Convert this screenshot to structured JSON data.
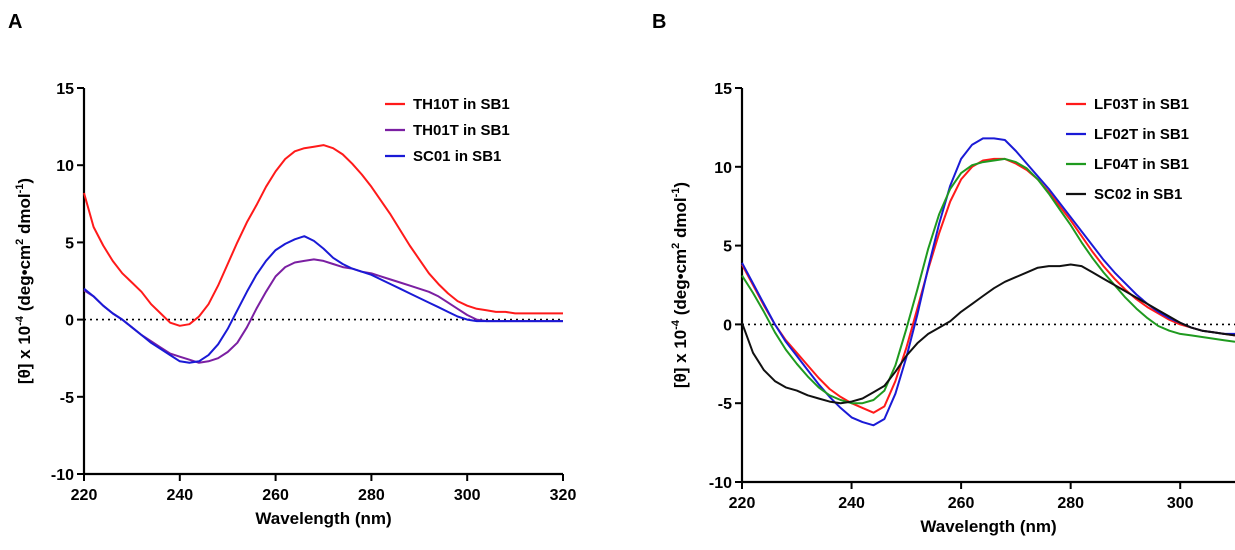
{
  "chart_data": [
    {
      "panel": "A",
      "type": "line",
      "xlabel": "Wavelength (nm)",
      "ylabel": "[θ] x 10",
      "ylabel_exp": "-4",
      "ylabel_units": " (deg•cm",
      "ylabel_units_exp": "2",
      "ylabel_units_mid": " dmol",
      "ylabel_units_exp2": "-1",
      "ylabel_units_end": ")",
      "xlim": [
        220,
        320
      ],
      "ylim": [
        -10,
        15
      ],
      "xticks": [
        220,
        240,
        260,
        280,
        300,
        320
      ],
      "yticks": [
        -10,
        -5,
        0,
        5,
        10,
        15
      ],
      "zero_line": "dotted",
      "legend_position": "top-right",
      "series": [
        {
          "name": "TH10T in SB1",
          "color": "#ff1a1a",
          "x": [
            220,
            222,
            224,
            226,
            228,
            230,
            232,
            234,
            236,
            238,
            240,
            242,
            244,
            246,
            248,
            250,
            252,
            254,
            256,
            258,
            260,
            262,
            264,
            266,
            268,
            270,
            272,
            274,
            276,
            278,
            280,
            282,
            284,
            286,
            288,
            290,
            292,
            294,
            296,
            298,
            300,
            302,
            304,
            306,
            308,
            310,
            312,
            314,
            316,
            318,
            320
          ],
          "y": [
            8.2,
            6.0,
            4.8,
            3.8,
            3.0,
            2.4,
            1.8,
            1.0,
            0.4,
            -0.2,
            -0.4,
            -0.3,
            0.2,
            1.0,
            2.2,
            3.6,
            5.0,
            6.3,
            7.4,
            8.6,
            9.6,
            10.4,
            10.9,
            11.1,
            11.2,
            11.3,
            11.1,
            10.7,
            10.1,
            9.4,
            8.6,
            7.7,
            6.8,
            5.8,
            4.8,
            3.9,
            3.0,
            2.3,
            1.7,
            1.2,
            0.9,
            0.7,
            0.6,
            0.5,
            0.5,
            0.4,
            0.4,
            0.4,
            0.4,
            0.4,
            0.4
          ]
        },
        {
          "name": "TH01T in SB1",
          "color": "#7b1fa2",
          "x": [
            220,
            222,
            224,
            226,
            228,
            230,
            232,
            234,
            236,
            238,
            240,
            242,
            244,
            246,
            248,
            250,
            252,
            254,
            256,
            258,
            260,
            262,
            264,
            266,
            268,
            270,
            272,
            274,
            276,
            278,
            280,
            282,
            284,
            286,
            288,
            290,
            292,
            294,
            296,
            298,
            300,
            302,
            304,
            306,
            308,
            310,
            312,
            314,
            316,
            318,
            320
          ],
          "y": [
            1.9,
            1.5,
            0.9,
            0.4,
            0.0,
            -0.5,
            -1.0,
            -1.4,
            -1.8,
            -2.2,
            -2.4,
            -2.6,
            -2.8,
            -2.7,
            -2.5,
            -2.1,
            -1.5,
            -0.5,
            0.7,
            1.8,
            2.8,
            3.4,
            3.7,
            3.8,
            3.9,
            3.8,
            3.6,
            3.4,
            3.3,
            3.1,
            3.0,
            2.8,
            2.6,
            2.4,
            2.2,
            2.0,
            1.8,
            1.5,
            1.1,
            0.7,
            0.3,
            0.0,
            -0.1,
            -0.1,
            -0.1,
            -0.1,
            -0.1,
            -0.1,
            -0.1,
            -0.1,
            -0.1
          ]
        },
        {
          "name": "SC01 in SB1",
          "color": "#1a1ad6",
          "x": [
            220,
            222,
            224,
            226,
            228,
            230,
            232,
            234,
            236,
            238,
            240,
            242,
            244,
            246,
            248,
            250,
            252,
            254,
            256,
            258,
            260,
            262,
            264,
            266,
            268,
            270,
            272,
            274,
            276,
            278,
            280,
            282,
            284,
            286,
            288,
            290,
            292,
            294,
            296,
            298,
            300,
            302,
            304,
            306,
            308,
            310,
            312,
            314,
            316,
            318,
            320
          ],
          "y": [
            2.0,
            1.5,
            0.9,
            0.4,
            0.0,
            -0.5,
            -1.0,
            -1.5,
            -1.9,
            -2.3,
            -2.7,
            -2.8,
            -2.7,
            -2.3,
            -1.6,
            -0.6,
            0.6,
            1.8,
            2.9,
            3.8,
            4.5,
            4.9,
            5.2,
            5.4,
            5.1,
            4.6,
            4.0,
            3.6,
            3.3,
            3.1,
            2.9,
            2.6,
            2.3,
            2.0,
            1.7,
            1.4,
            1.1,
            0.8,
            0.5,
            0.2,
            0.0,
            -0.1,
            -0.1,
            -0.1,
            -0.1,
            -0.1,
            -0.1,
            -0.1,
            -0.1,
            -0.1,
            -0.1
          ]
        }
      ]
    },
    {
      "panel": "B",
      "type": "line",
      "xlabel": "Wavelength (nm)",
      "ylabel": "[θ] x 10",
      "ylabel_exp": "-4",
      "ylabel_units": " (deg•cm",
      "ylabel_units_exp": "2",
      "ylabel_units_mid": " dmol",
      "ylabel_units_exp2": "-1",
      "ylabel_units_end": ")",
      "xlim": [
        220,
        310
      ],
      "ylim": [
        -10,
        15
      ],
      "xticks": [
        220,
        240,
        260,
        280,
        300
      ],
      "yticks": [
        -10,
        -5,
        0,
        5,
        10,
        15
      ],
      "zero_line": "dotted",
      "legend_position": "top-right",
      "series": [
        {
          "name": "LF03T in SB1",
          "color": "#ff1a1a",
          "x": [
            220,
            222,
            224,
            226,
            228,
            230,
            232,
            234,
            236,
            238,
            240,
            242,
            244,
            246,
            248,
            250,
            252,
            254,
            256,
            258,
            260,
            262,
            264,
            266,
            268,
            270,
            272,
            274,
            276,
            278,
            280,
            282,
            284,
            286,
            288,
            290,
            292,
            294,
            296,
            298,
            300,
            302,
            304,
            306,
            308,
            310
          ],
          "y": [
            3.8,
            2.5,
            1.2,
            0.0,
            -1.0,
            -1.8,
            -2.6,
            -3.4,
            -4.1,
            -4.6,
            -5.0,
            -5.3,
            -5.6,
            -5.2,
            -3.6,
            -1.5,
            1.0,
            3.5,
            5.8,
            7.8,
            9.2,
            10.0,
            10.4,
            10.5,
            10.5,
            10.2,
            9.8,
            9.2,
            8.4,
            7.5,
            6.6,
            5.6,
            4.6,
            3.7,
            2.9,
            2.2,
            1.6,
            1.1,
            0.7,
            0.3,
            0.0,
            -0.2,
            -0.4,
            -0.5,
            -0.6,
            -0.7
          ]
        },
        {
          "name": "LF02T in SB1",
          "color": "#1a1ad6",
          "x": [
            220,
            222,
            224,
            226,
            228,
            230,
            232,
            234,
            236,
            238,
            240,
            242,
            244,
            246,
            248,
            250,
            252,
            254,
            256,
            258,
            260,
            262,
            264,
            266,
            268,
            270,
            272,
            274,
            276,
            278,
            280,
            282,
            284,
            286,
            288,
            290,
            292,
            294,
            296,
            298,
            300,
            302,
            304,
            306,
            308,
            310
          ],
          "y": [
            3.9,
            2.6,
            1.3,
            0.0,
            -1.1,
            -2.0,
            -2.9,
            -3.8,
            -4.6,
            -5.3,
            -5.9,
            -6.2,
            -6.4,
            -6.0,
            -4.4,
            -2.1,
            0.6,
            3.6,
            6.4,
            8.8,
            10.5,
            11.4,
            11.8,
            11.8,
            11.7,
            11.0,
            10.2,
            9.4,
            8.6,
            7.7,
            6.8,
            5.9,
            5.0,
            4.1,
            3.3,
            2.6,
            1.9,
            1.3,
            0.8,
            0.4,
            0.1,
            -0.2,
            -0.4,
            -0.5,
            -0.6,
            -0.6
          ]
        },
        {
          "name": "LF04T in SB1",
          "color": "#1f9a1f",
          "x": [
            220,
            222,
            224,
            226,
            228,
            230,
            232,
            234,
            236,
            238,
            240,
            242,
            244,
            246,
            248,
            250,
            252,
            254,
            256,
            258,
            260,
            262,
            264,
            266,
            268,
            270,
            272,
            274,
            276,
            278,
            280,
            282,
            284,
            286,
            288,
            290,
            292,
            294,
            296,
            298,
            300,
            302,
            304,
            306,
            308,
            310
          ],
          "y": [
            3.1,
            2.0,
            0.8,
            -0.5,
            -1.6,
            -2.5,
            -3.3,
            -4.0,
            -4.5,
            -4.8,
            -5.0,
            -5.0,
            -4.8,
            -4.2,
            -2.6,
            -0.3,
            2.2,
            4.8,
            7.0,
            8.6,
            9.6,
            10.1,
            10.3,
            10.4,
            10.5,
            10.3,
            9.9,
            9.2,
            8.3,
            7.3,
            6.3,
            5.2,
            4.2,
            3.3,
            2.5,
            1.7,
            1.0,
            0.4,
            -0.1,
            -0.4,
            -0.6,
            -0.7,
            -0.8,
            -0.9,
            -1.0,
            -1.1
          ]
        },
        {
          "name": "SC02 in SB1",
          "color": "#111111",
          "x": [
            220,
            222,
            224,
            226,
            228,
            230,
            232,
            234,
            236,
            238,
            240,
            242,
            244,
            246,
            248,
            250,
            252,
            254,
            256,
            258,
            260,
            262,
            264,
            266,
            268,
            270,
            272,
            274,
            276,
            278,
            280,
            282,
            284,
            286,
            288,
            290,
            292,
            294,
            296,
            298,
            300,
            302,
            304,
            306,
            308,
            310
          ],
          "y": [
            0.1,
            -1.8,
            -2.9,
            -3.6,
            -4.0,
            -4.2,
            -4.5,
            -4.7,
            -4.9,
            -5.0,
            -4.9,
            -4.7,
            -4.3,
            -3.9,
            -3.0,
            -2.0,
            -1.2,
            -0.6,
            -0.2,
            0.2,
            0.8,
            1.3,
            1.8,
            2.3,
            2.7,
            3.0,
            3.3,
            3.6,
            3.7,
            3.7,
            3.8,
            3.7,
            3.3,
            2.9,
            2.5,
            2.1,
            1.7,
            1.3,
            0.9,
            0.5,
            0.1,
            -0.2,
            -0.4,
            -0.5,
            -0.6,
            -0.7
          ]
        }
      ]
    }
  ]
}
